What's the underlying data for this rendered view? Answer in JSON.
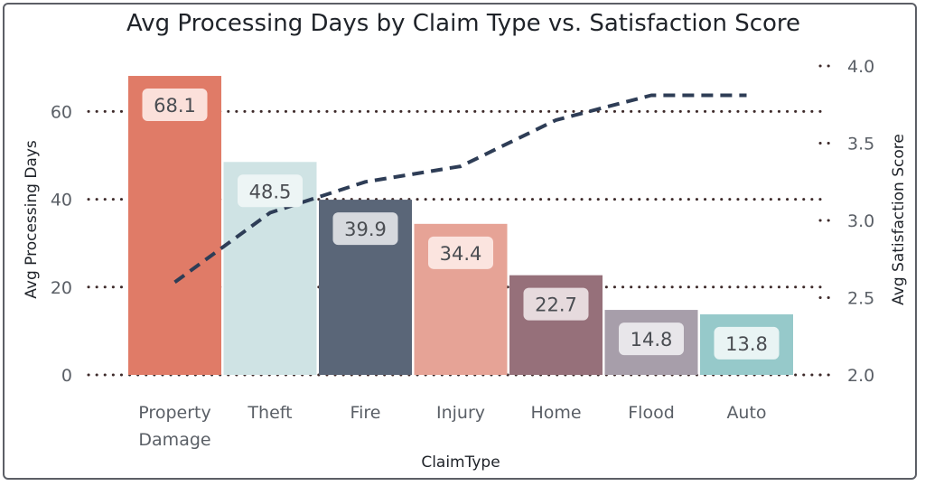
{
  "chart_data": {
    "type": "bar",
    "title": "Avg Processing Days by Claim Type vs. Satisfaction Score",
    "xlabel": "ClaimType",
    "ylabel": "Avg Processing Days",
    "y2label": "Avg Satisfaction Score",
    "categories": [
      [
        "Property",
        "Damage"
      ],
      [
        "Theft"
      ],
      [
        "Fire"
      ],
      [
        "Injury"
      ],
      [
        "Home"
      ],
      [
        "Flood"
      ],
      [
        "Auto"
      ]
    ],
    "series": [
      {
        "name": "Avg Processing Days",
        "axis": "left",
        "type": "bar",
        "values": [
          68.1,
          48.5,
          39.9,
          34.4,
          22.7,
          14.8,
          13.8
        ],
        "labels": [
          "68.1",
          "48.5",
          "39.9",
          "34.4",
          "22.7",
          "14.8",
          "13.8"
        ]
      },
      {
        "name": "Avg Satisfaction Score",
        "axis": "right",
        "type": "line",
        "style": "dashed",
        "color": "#2e3d56",
        "values": [
          2.6,
          3.05,
          3.25,
          3.35,
          3.65,
          3.81,
          3.81
        ]
      }
    ],
    "bar_colors": [
      "#e07b67",
      "#cfe3e4",
      "#5a6678",
      "#e6a396",
      "#96707a",
      "#a79eaa",
      "#96c9ca"
    ],
    "label_box_colors": [
      "#fbe0da",
      "#edf5f5",
      "#d6d9de",
      "#fbe4df",
      "#e6dadd",
      "#e8e6ea",
      "#e9f4f4"
    ],
    "yticks_left": [
      "0",
      "20",
      "40",
      "60"
    ],
    "yticks_left_values": [
      0,
      20,
      40,
      60
    ],
    "ylim_left": [
      0,
      70
    ],
    "yticks_right": [
      "2.0",
      "2.5",
      "3.0",
      "3.5",
      "4.0"
    ],
    "yticks_right_values": [
      2.0,
      2.5,
      3.0,
      3.5,
      4.0
    ],
    "ylim_right": [
      2.0,
      4.0
    ],
    "grid": true,
    "grid_style": "dotted",
    "grid_color": "#3d2a2a"
  }
}
